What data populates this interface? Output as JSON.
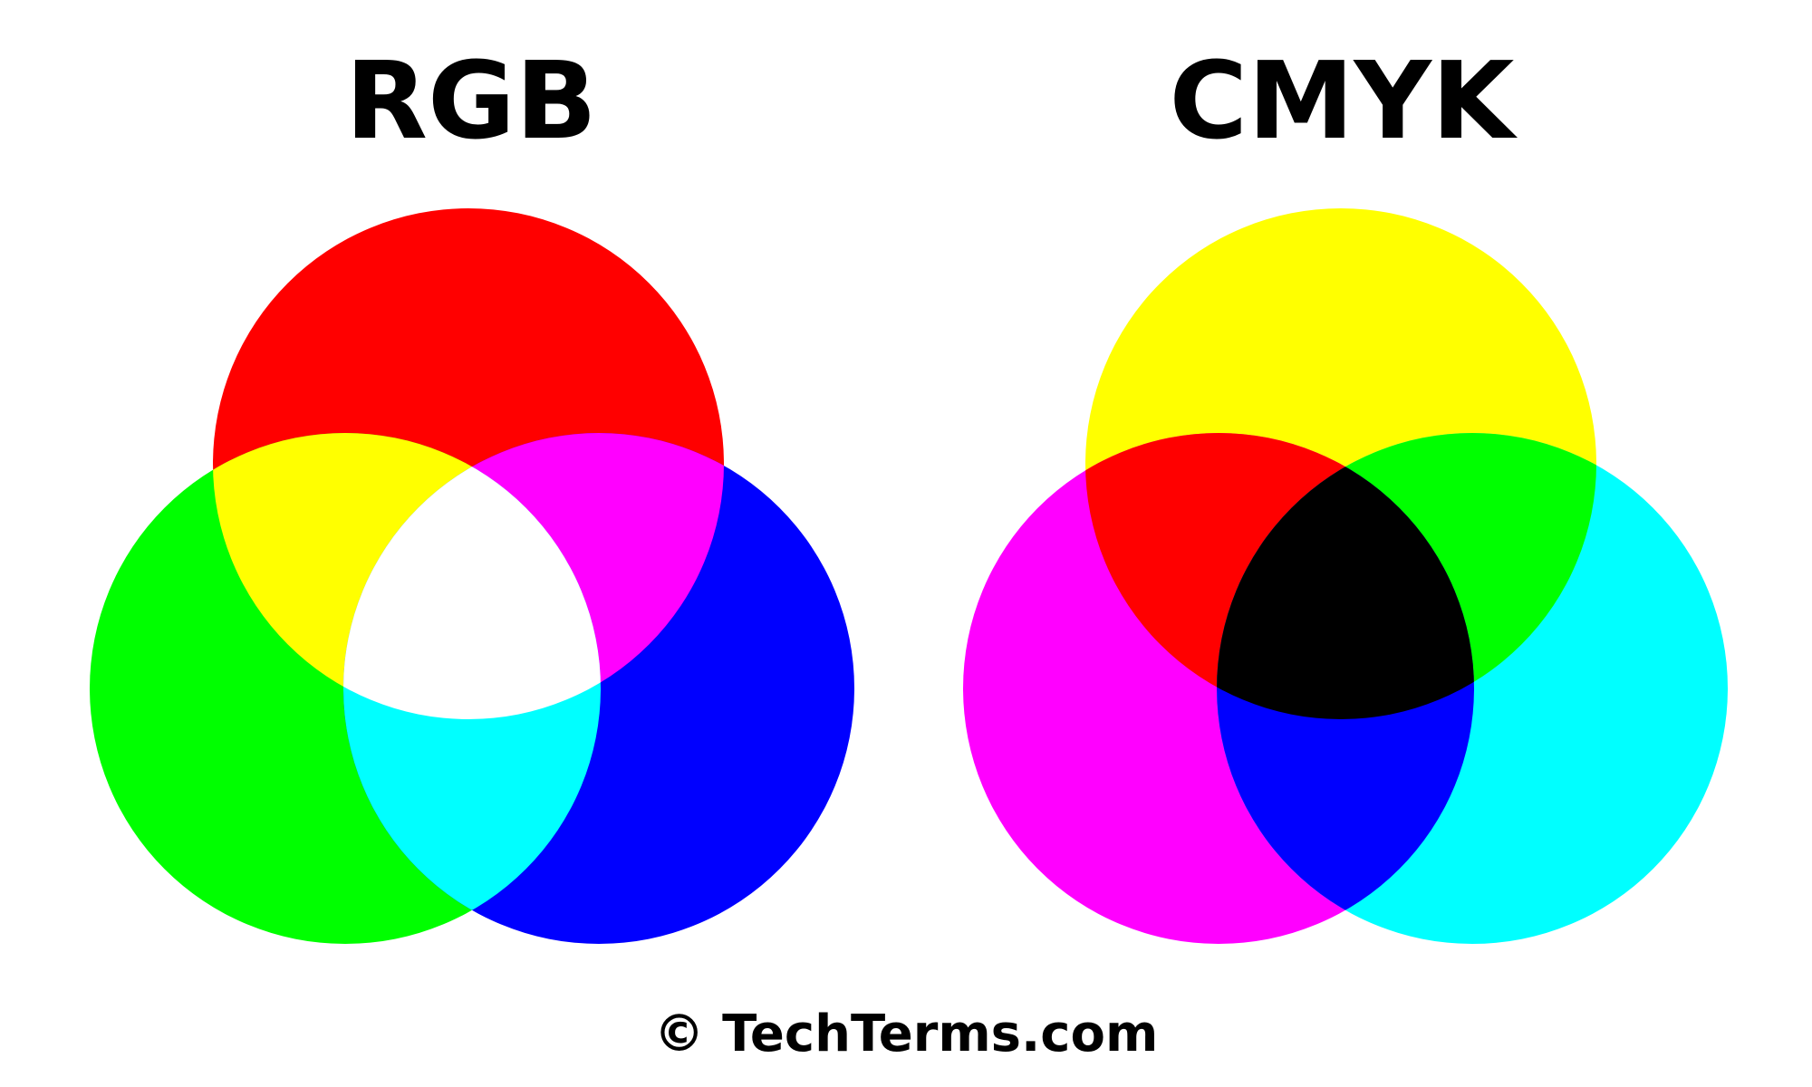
{
  "rgb": {
    "title": "RGB",
    "colors": {
      "red": "#ff0000",
      "green": "#00ff00",
      "blue": "#0000ff",
      "red_green": "#ffff00",
      "red_blue": "#ff00ff",
      "green_blue": "#00ffff",
      "all": "#ffffff"
    }
  },
  "cmyk": {
    "title": "CMYK",
    "colors": {
      "yellow": "#ffff00",
      "magenta": "#ff00ff",
      "cyan": "#00ffff",
      "yellow_magenta": "#ff0000",
      "yellow_cyan": "#00ff00",
      "magenta_cyan": "#0000ff",
      "all": "#000000"
    }
  },
  "footer": {
    "credit": "© TechTerms.com"
  }
}
